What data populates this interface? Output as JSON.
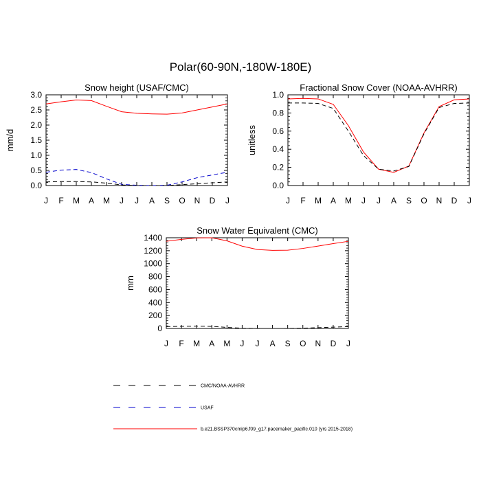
{
  "figure": {
    "title": "Polar(60-90N,-180W-180E)"
  },
  "legend": {
    "entries": [
      {
        "label": "CMC/NOAA-AVHRR",
        "color": "#000000",
        "style": "dashed"
      },
      {
        "label": "USAF",
        "color": "#0000cc",
        "style": "dashed"
      },
      {
        "label": "b.e21.BSSP370cmip6.f09_g17.pacemaker_pacific.010 (yrs 2015-2018)",
        "color": "#ff0000",
        "style": "solid"
      }
    ]
  },
  "chart_data": [
    {
      "type": "line",
      "title": "Snow height (USAF/CMC)",
      "xlabel": "",
      "ylabel": "mm/d",
      "categories": [
        "J",
        "F",
        "M",
        "A",
        "M",
        "J",
        "J",
        "A",
        "S",
        "O",
        "N",
        "D",
        "J"
      ],
      "ylim": [
        0,
        3.0
      ],
      "yticks": [
        0.0,
        0.5,
        1.0,
        1.5,
        2.0,
        2.5,
        3.0
      ],
      "ytick_labels": [
        "0.0",
        "0.5",
        "1.0",
        "1.5",
        "2.0",
        "2.5",
        "3.0"
      ],
      "series": [
        {
          "color": "#ff0000",
          "style": "solid",
          "values": [
            2.7,
            2.77,
            2.83,
            2.81,
            2.62,
            2.44,
            2.39,
            2.37,
            2.36,
            2.4,
            2.5,
            2.6,
            2.7
          ]
        },
        {
          "color": "#0000cc",
          "style": "dashed",
          "values": [
            0.44,
            0.51,
            0.53,
            0.43,
            0.22,
            0.04,
            0.01,
            0.0,
            0.01,
            0.12,
            0.26,
            0.35,
            0.44
          ]
        },
        {
          "color": "#000000",
          "style": "dashed",
          "values": [
            0.12,
            0.13,
            0.13,
            0.12,
            0.08,
            0.02,
            0.0,
            0.0,
            0.0,
            0.03,
            0.06,
            0.09,
            0.12
          ]
        }
      ]
    },
    {
      "type": "line",
      "title": "Fractional Snow Cover (NOAA-AVHRR)",
      "xlabel": "",
      "ylabel": "unitless",
      "categories": [
        "J",
        "F",
        "M",
        "A",
        "M",
        "J",
        "J",
        "A",
        "S",
        "O",
        "N",
        "D",
        "J"
      ],
      "ylim": [
        0,
        1.0
      ],
      "yticks": [
        0.0,
        0.2,
        0.4,
        0.6,
        0.8,
        1.0
      ],
      "ytick_labels": [
        "0.0",
        "0.2",
        "0.4",
        "0.6",
        "0.8",
        "1.0"
      ],
      "series": [
        {
          "color": "#ff0000",
          "style": "solid",
          "values": [
            0.955,
            0.96,
            0.955,
            0.895,
            0.66,
            0.37,
            0.18,
            0.145,
            0.215,
            0.58,
            0.87,
            0.945,
            0.955
          ]
        },
        {
          "color": "#000000",
          "style": "dashed",
          "values": [
            0.91,
            0.91,
            0.905,
            0.85,
            0.6,
            0.33,
            0.18,
            0.16,
            0.21,
            0.57,
            0.86,
            0.905,
            0.91
          ]
        }
      ]
    },
    {
      "type": "line",
      "title": "Snow Water Equivalent (CMC)",
      "xlabel": "",
      "ylabel": "mm",
      "categories": [
        "J",
        "F",
        "M",
        "A",
        "M",
        "J",
        "J",
        "A",
        "S",
        "O",
        "N",
        "D",
        "J"
      ],
      "ylim": [
        0,
        1400
      ],
      "yticks": [
        0,
        200,
        400,
        600,
        800,
        1000,
        1200,
        1400
      ],
      "ytick_labels": [
        "0",
        "200",
        "400",
        "600",
        "800",
        "1000",
        "1200",
        "1400"
      ],
      "series": [
        {
          "color": "#ff0000",
          "style": "solid",
          "values": [
            1345,
            1375,
            1398,
            1400,
            1352,
            1270,
            1218,
            1205,
            1208,
            1235,
            1272,
            1310,
            1345
          ]
        },
        {
          "color": "#000000",
          "style": "dashed",
          "values": [
            28,
            33,
            36,
            32,
            16,
            4,
            1,
            0,
            1,
            5,
            12,
            20,
            28
          ]
        }
      ]
    }
  ]
}
